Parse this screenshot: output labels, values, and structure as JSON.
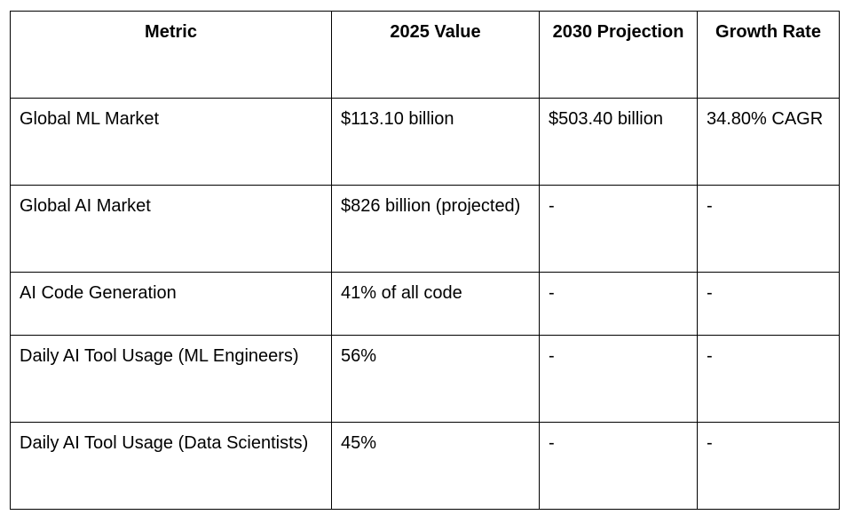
{
  "table": {
    "headers": [
      "Metric",
      "2025 Value",
      "2030 Projection",
      "Growth Rate"
    ],
    "rows": [
      [
        "Global ML Market",
        "$113.10 billion",
        "$503.40 billion",
        "34.80% CAGR"
      ],
      [
        "Global AI Market",
        "$826 billion (projected)",
        "-",
        "-"
      ],
      [
        "AI Code Generation",
        "41% of all code",
        "-",
        "-"
      ],
      [
        "Daily AI Tool Usage (ML Engineers)",
        "56%",
        "-",
        "-"
      ],
      [
        "Daily AI Tool Usage (Data Scientists)",
        "45%",
        "-",
        "-"
      ]
    ]
  }
}
